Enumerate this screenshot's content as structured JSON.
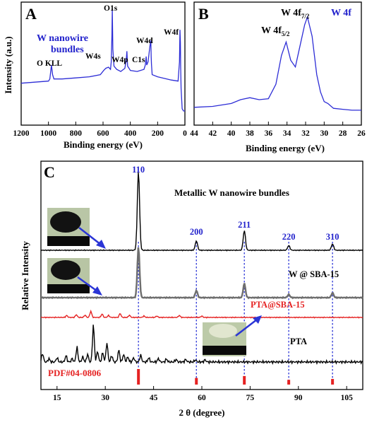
{
  "chart_data": [
    {
      "panel": "A",
      "type": "line",
      "xlabel": "Binding energy (eV)",
      "ylabel": "Intensity (a.u.)",
      "xlim": [
        1200,
        0
      ],
      "x_ticks": [
        1200,
        1000,
        800,
        600,
        400,
        200,
        0
      ],
      "line_color": "#2d2dd6",
      "title_label": "W nanowire\nbundles",
      "series": [
        {
          "x": [
            1200,
            1100,
            1000,
            990,
            978,
            970,
            960,
            900,
            800,
            700,
            620,
            595,
            580,
            560,
            545,
            540,
            535,
            532,
            528,
            520,
            500,
            470,
            440,
            430,
            425,
            420,
            400,
            350,
            300,
            290,
            284,
            280,
            270,
            259,
            255,
            250,
            247,
            245,
            240,
            200,
            100,
            50,
            40,
            36,
            33,
            31,
            28,
            20,
            10,
            0
          ],
          "y": [
            0.3,
            0.31,
            0.32,
            0.34,
            0.47,
            0.38,
            0.34,
            0.34,
            0.35,
            0.36,
            0.38,
            0.42,
            0.44,
            0.45,
            0.43,
            0.5,
            0.75,
            1.0,
            0.62,
            0.46,
            0.43,
            0.41,
            0.44,
            0.52,
            0.6,
            0.46,
            0.42,
            0.41,
            0.43,
            0.47,
            0.55,
            0.47,
            0.5,
            0.62,
            0.66,
            0.7,
            0.55,
            0.48,
            0.38,
            0.36,
            0.33,
            0.32,
            0.5,
            0.8,
            0.68,
            0.45,
            0.25,
            0.06,
            0.04,
            0.04
          ]
        }
      ],
      "annotations": [
        "O KLL",
        "W4s",
        "O1s",
        "W4p",
        "C1s",
        "W4d",
        "W4f"
      ]
    },
    {
      "panel": "B",
      "type": "line",
      "xlabel": "Binding energy (eV)",
      "ylabel": "",
      "xlim": [
        44,
        26
      ],
      "x_ticks": [
        44,
        42,
        40,
        38,
        36,
        34,
        32,
        30,
        28,
        26
      ],
      "line_color": "#2d2dd6",
      "title_label": "W 4f",
      "series": [
        {
          "x": [
            44,
            42,
            40,
            39,
            38,
            37,
            36,
            35.2,
            34.6,
            34.1,
            33.6,
            33.1,
            32.6,
            32.1,
            31.8,
            31.3,
            30.8,
            30.4,
            30.0,
            29.6,
            29.0,
            28,
            27,
            26
          ],
          "y": [
            0.06,
            0.07,
            0.1,
            0.14,
            0.16,
            0.14,
            0.15,
            0.3,
            0.6,
            0.74,
            0.55,
            0.48,
            0.7,
            0.92,
            1.0,
            0.8,
            0.4,
            0.22,
            0.12,
            0.1,
            0.05,
            0.04,
            0.03,
            0.03
          ]
        }
      ],
      "peak_labels": [
        {
          "main": "W 4f",
          "sub": "5/2"
        },
        {
          "main": "W 4f",
          "sub": "7/2"
        }
      ]
    },
    {
      "panel": "C",
      "type": "line",
      "xlabel": "2 θ (degree)",
      "ylabel": "Relative Intensity",
      "xlim": [
        10,
        110
      ],
      "x_ticks": [
        15,
        30,
        45,
        60,
        75,
        90,
        105
      ],
      "peak_indices": [
        {
          "label": "110",
          "x": 40.3
        },
        {
          "label": "200",
          "x": 58.3
        },
        {
          "label": "211",
          "x": 73.2
        },
        {
          "label": "220",
          "x": 87.0
        },
        {
          "label": "310",
          "x": 100.6
        }
      ],
      "series": [
        {
          "name": "Metallic W nanowire bundles",
          "color": "#000000",
          "peaks": [
            [
              40.3,
              1.0
            ],
            [
              58.3,
              0.12
            ],
            [
              73.2,
              0.25
            ],
            [
              87.0,
              0.06
            ],
            [
              100.6,
              0.08
            ]
          ]
        },
        {
          "name": "W @ SBA-15",
          "color": "#6e6e6e",
          "peaks": [
            [
              40.3,
              0.64
            ],
            [
              58.3,
              0.09
            ],
            [
              73.2,
              0.18
            ],
            [
              87.0,
              0.04
            ],
            [
              100.6,
              0.06
            ]
          ]
        },
        {
          "name": "PTA@SBA-15",
          "color": "#e52222",
          "peaks": [
            [
              18.0,
              0.07
            ],
            [
              21.0,
              0.1
            ],
            [
              23.7,
              0.08
            ],
            [
              25.5,
              0.22
            ],
            [
              29.0,
              0.12
            ],
            [
              31.0,
              0.07
            ],
            [
              34.6,
              0.14
            ],
            [
              37.5,
              0.08
            ],
            [
              42.0,
              0.05
            ],
            [
              46.0,
              0.05
            ],
            [
              53.0,
              0.07
            ],
            [
              60.0,
              0.05
            ]
          ]
        },
        {
          "name": "PTA",
          "color": "#000000",
          "peaks": [
            [
              10.5,
              0.2
            ],
            [
              12.5,
              0.08
            ],
            [
              15.0,
              0.1
            ],
            [
              17.8,
              0.15
            ],
            [
              19.7,
              0.08
            ],
            [
              21.2,
              0.35
            ],
            [
              23.0,
              0.12
            ],
            [
              24.5,
              0.18
            ],
            [
              26.3,
              0.88
            ],
            [
              27.6,
              0.25
            ],
            [
              29.2,
              0.22
            ],
            [
              30.5,
              0.45
            ],
            [
              32.0,
              0.15
            ],
            [
              34.2,
              0.28
            ],
            [
              35.7,
              0.18
            ],
            [
              37.0,
              0.12
            ],
            [
              38.8,
              0.1
            ],
            [
              41.0,
              0.16
            ],
            [
              43.5,
              0.1
            ],
            [
              46.5,
              0.08
            ],
            [
              49.0,
              0.07
            ],
            [
              52.0,
              0.06
            ],
            [
              55.0,
              0.06
            ],
            [
              58.0,
              0.05
            ],
            [
              61.0,
              0.05
            ]
          ]
        }
      ],
      "reference": {
        "name": "PDF#04-0806",
        "color": "#e52222",
        "bars": [
          [
            40.3,
            1.0
          ],
          [
            58.3,
            0.3
          ],
          [
            73.2,
            0.45
          ],
          [
            87.0,
            0.15
          ],
          [
            100.6,
            0.22
          ]
        ]
      },
      "curve_labels": [
        "Metallic W nanowire bundles",
        "W @ SBA-15",
        "PTA@SBA-15",
        "PTA",
        "PDF#04-0806"
      ]
    }
  ],
  "panel_letters": [
    "A",
    "B",
    "C"
  ]
}
